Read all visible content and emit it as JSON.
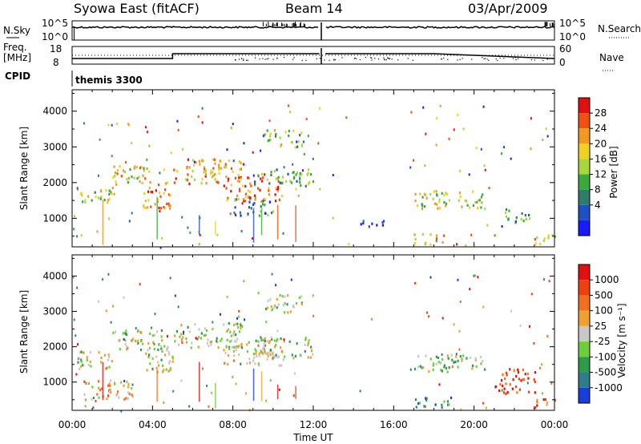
{
  "header": {
    "station": "Syowa East (fitACF)",
    "beam": "Beam 14",
    "date": "03/Apr/2009"
  },
  "top_panels": {
    "nsky_label": "N.Sky",
    "nsky_ticks": [
      "10^5",
      "10^0"
    ],
    "nsearch_label": "N.Search",
    "nsearch_ticks": [
      "10^5",
      "10^0"
    ],
    "freq_label_1": "Freq.",
    "freq_label_2": "[MHz]",
    "freq_ticks": [
      "18",
      "8"
    ],
    "nave_label": "Nave",
    "nave_ticks": [
      "60",
      "0"
    ],
    "cpid_label": "CPID",
    "cpid_value": "themis 3300"
  },
  "chart_data": [
    {
      "type": "heatmap",
      "name": "power",
      "ylabel": "Slant Range [km]",
      "xlabel": "",
      "yticks": [
        "4000",
        "3000",
        "2000",
        "1000"
      ],
      "ylim": [
        200,
        4600
      ],
      "xlim": [
        0,
        24
      ],
      "colorbar_label": "Power [dB]",
      "colorbar_ticks": [
        "28",
        "24",
        "20",
        "16",
        "12",
        "8",
        "4"
      ],
      "colors": [
        "#1a1aff",
        "#2050c8",
        "#2e7d6b",
        "#3aaa3a",
        "#a6d83a",
        "#f0d020",
        "#f09820",
        "#f05010",
        "#e01010"
      ],
      "regions": [
        {
          "t0": 0.2,
          "t1": 2.0,
          "r0": 1400,
          "r1": 1900,
          "level": 0.5
        },
        {
          "t0": 2.0,
          "t1": 4.0,
          "r0": 1900,
          "r1": 2500,
          "level": 0.6
        },
        {
          "t0": 3.5,
          "t1": 5.0,
          "r0": 1300,
          "r1": 2100,
          "level": 0.75
        },
        {
          "t0": 5.0,
          "t1": 8.5,
          "r0": 2000,
          "r1": 2700,
          "level": 0.7
        },
        {
          "t0": 7.5,
          "t1": 10.5,
          "r0": 1500,
          "r1": 2200,
          "level": 0.8
        },
        {
          "t0": 8.0,
          "t1": 10.0,
          "r0": 1100,
          "r1": 1600,
          "level": 0.3
        },
        {
          "t0": 9.5,
          "t1": 11.5,
          "r0": 3000,
          "r1": 3500,
          "level": 0.5
        },
        {
          "t0": 9.0,
          "t1": 12.0,
          "r0": 1900,
          "r1": 2400,
          "level": 0.4
        },
        {
          "t0": 17.0,
          "t1": 20.5,
          "r0": 1300,
          "r1": 1800,
          "level": 0.55
        },
        {
          "t0": 17.0,
          "t1": 18.5,
          "r0": 300,
          "r1": 600,
          "level": 0.6
        },
        {
          "t0": 21.5,
          "t1": 23.0,
          "r0": 900,
          "r1": 1300,
          "level": 0.3
        },
        {
          "t0": 22.8,
          "t1": 24.0,
          "r0": 300,
          "r1": 600,
          "level": 0.65
        },
        {
          "t0": 14.0,
          "t1": 15.5,
          "r0": 800,
          "r1": 1000,
          "level": 0.1
        }
      ]
    },
    {
      "type": "heatmap",
      "name": "velocity",
      "ylabel": "Slant Range [km]",
      "xlabel": "Time UT",
      "yticks": [
        "4000",
        "3000",
        "2000",
        "1000"
      ],
      "xticks": [
        "00:00",
        "04:00",
        "08:00",
        "12:00",
        "16:00",
        "20:00",
        "00:00"
      ],
      "ylim": [
        200,
        4600
      ],
      "xlim": [
        0,
        24
      ],
      "colorbar_label": "Velocity [m s⁻¹]",
      "colorbar_ticks": [
        "1000",
        "500",
        "100",
        "25",
        "-25",
        "-100",
        "-500",
        "-1000"
      ],
      "colors": [
        "#1a3cd8",
        "#2e7d8a",
        "#2e9a4a",
        "#6ccf3a",
        "#c8c8c8",
        "#f0a030",
        "#f07020",
        "#f04010",
        "#e01010"
      ],
      "regions": [
        {
          "t0": 0.2,
          "t1": 2.0,
          "r0": 1400,
          "r1": 1900,
          "level": 0.45
        },
        {
          "t0": 2.0,
          "t1": 4.5,
          "r0": 1900,
          "r1": 2500,
          "level": 0.45
        },
        {
          "t0": 3.5,
          "t1": 5.0,
          "r0": 1300,
          "r1": 2100,
          "level": 0.45
        },
        {
          "t0": 5.0,
          "t1": 8.5,
          "r0": 2000,
          "r1": 2700,
          "level": 0.45
        },
        {
          "t0": 7.5,
          "t1": 10.5,
          "r0": 1500,
          "r1": 2200,
          "level": 0.5
        },
        {
          "t0": 9.5,
          "t1": 11.5,
          "r0": 3000,
          "r1": 3500,
          "level": 0.45
        },
        {
          "t0": 9.0,
          "t1": 12.0,
          "r0": 1700,
          "r1": 2300,
          "level": 0.45
        },
        {
          "t0": 17.0,
          "t1": 20.5,
          "r0": 1300,
          "r1": 1800,
          "level": 0.45
        },
        {
          "t0": 17.0,
          "t1": 19.0,
          "r0": 300,
          "r1": 600,
          "level": 0.2
        },
        {
          "t0": 21.0,
          "t1": 23.0,
          "r0": 700,
          "r1": 1400,
          "level": 0.85
        },
        {
          "t0": 22.8,
          "t1": 24.0,
          "r0": 300,
          "r1": 550,
          "level": 0.75
        },
        {
          "t0": 0.5,
          "t1": 3.0,
          "r0": 500,
          "r1": 1100,
          "level": 0.6
        }
      ]
    }
  ]
}
